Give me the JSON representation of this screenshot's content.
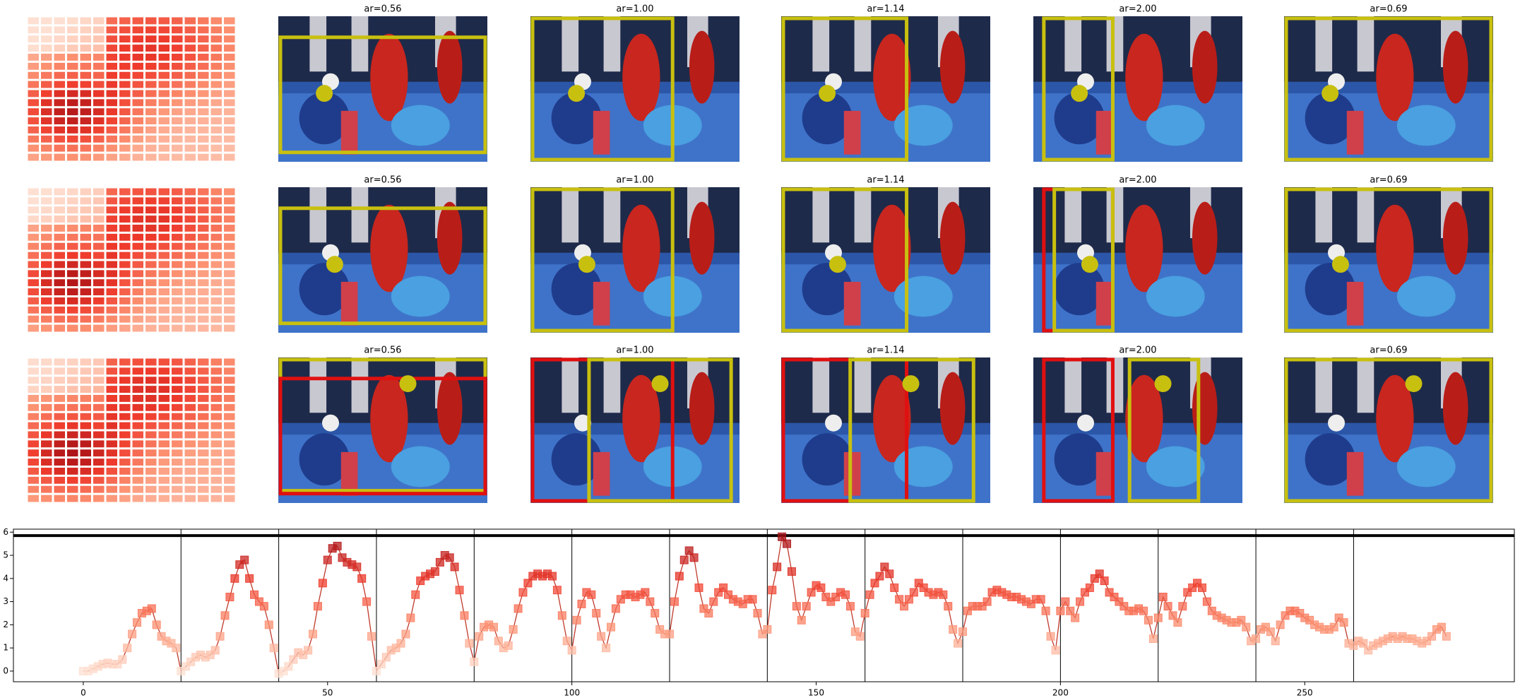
{
  "panels": {
    "titles": [
      [
        "ar=0.56",
        "ar=1.00",
        "ar=1.14",
        "ar=2.00",
        "ar=0.69"
      ],
      [
        "ar=0.56",
        "ar=1.00",
        "ar=1.14",
        "ar=2.00",
        "ar=0.69"
      ],
      [
        "ar=0.56",
        "ar=1.00",
        "ar=1.14",
        "ar=2.00",
        "ar=0.69"
      ]
    ]
  },
  "chart_data": {
    "type": "line",
    "colormap": "Reds",
    "line_color": "#c0392b",
    "values": [
      0,
      0,
      0.1,
      0.2,
      0.3,
      0.35,
      0.3,
      0.3,
      0.5,
      1.0,
      1.6,
      2.1,
      2.5,
      2.6,
      2.7,
      2.0,
      1.5,
      1.3,
      1.2,
      1.0,
      0,
      0.2,
      0.4,
      0.6,
      0.7,
      0.6,
      0.7,
      0.9,
      1.5,
      2.4,
      3.2,
      4.0,
      4.6,
      4.8,
      4.0,
      3.3,
      3.0,
      2.8,
      2.0,
      1.0,
      -0.1,
      0,
      0.2,
      0.5,
      0.8,
      0.7,
      0.9,
      1.6,
      2.8,
      3.8,
      4.8,
      5.3,
      5.4,
      4.9,
      4.7,
      4.6,
      4.5,
      4.0,
      3.0,
      1.5,
      0,
      0.3,
      0.6,
      0.9,
      1.0,
      1.2,
      1.6,
      2.3,
      3.3,
      3.9,
      4.1,
      4.2,
      4.3,
      4.7,
      5.0,
      4.9,
      4.5,
      3.5,
      2.4,
      1.2,
      0.4,
      1.5,
      1.9,
      2.0,
      1.9,
      1.3,
      1.0,
      1.1,
      1.8,
      2.7,
      3.4,
      3.8,
      4.1,
      4.2,
      4.1,
      4.2,
      4.1,
      3.5,
      2.4,
      1.3,
      0.9,
      2.2,
      2.9,
      3.4,
      3.3,
      2.5,
      1.5,
      1.0,
      1.9,
      2.7,
      3.1,
      3.3,
      3.3,
      3.2,
      3.3,
      3.4,
      3.0,
      2.5,
      1.8,
      1.6,
      1.6,
      3.0,
      4.1,
      4.8,
      5.2,
      4.9,
      3.6,
      2.7,
      2.5,
      3.0,
      3.4,
      3.6,
      3.3,
      3.1,
      3.0,
      2.9,
      3.1,
      3.1,
      2.5,
      1.6,
      1.8,
      3.5,
      4.5,
      5.8,
      5.5,
      4.3,
      2.8,
      2.2,
      2.8,
      3.4,
      3.7,
      3.6,
      3.2,
      3.0,
      3.2,
      3.4,
      3.3,
      2.8,
      1.7,
      1.5,
      2.5,
      3.3,
      3.8,
      4.1,
      4.5,
      4.2,
      3.6,
      3.1,
      2.8,
      3.1,
      3.4,
      3.8,
      3.6,
      3.4,
      3.3,
      3.4,
      3.3,
      2.8,
      1.8,
      1.2,
      1.7,
      2.6,
      2.8,
      2.8,
      2.8,
      3.0,
      3.4,
      3.5,
      3.4,
      3.3,
      3.2,
      3.2,
      3.1,
      3.0,
      2.9,
      3.1,
      3.1,
      2.6,
      1.5,
      0.9,
      2.6,
      3.0,
      2.6,
      2.3,
      3.0,
      3.4,
      3.6,
      4.0,
      4.2,
      3.9,
      3.4,
      3.2,
      3.0,
      2.8,
      2.6,
      2.6,
      2.7,
      2.6,
      2.2,
      1.4,
      2.3,
      3.2,
      2.8,
      2.4,
      2.1,
      2.8,
      3.4,
      3.6,
      3.8,
      3.6,
      3.0,
      2.6,
      2.4,
      2.3,
      2.2,
      2.1,
      2.1,
      2.2,
      1.9,
      1.3,
      1.4,
      1.8,
      1.9,
      1.7,
      1.3,
      2.0,
      2.4,
      2.6,
      2.6,
      2.5,
      2.3,
      2.2,
      2.0,
      1.9,
      1.8,
      1.8,
      1.9,
      2.3,
      2.1,
      1.2,
      1.1,
      1.3,
      1.2,
      0.9,
      1.1,
      1.2,
      1.3,
      1.4,
      1.5,
      1.4,
      1.5,
      1.4,
      1.4,
      1.3,
      1.2,
      1.3,
      1.5,
      1.8,
      1.9,
      1.5
    ],
    "xlim": [
      -14.3,
      292.9
    ],
    "ylim": [
      -0.46,
      6.13
    ],
    "xticks": [
      0,
      50,
      100,
      150,
      200,
      250
    ],
    "yticks": [
      0,
      1,
      2,
      3,
      4,
      5,
      6
    ],
    "vlines": [
      20,
      40,
      60,
      80,
      100,
      120,
      140,
      160,
      180,
      200,
      220,
      240,
      260
    ],
    "hline": 5.85
  }
}
